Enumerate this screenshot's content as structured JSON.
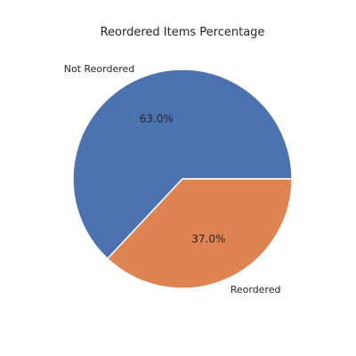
{
  "chart_data": {
    "type": "pie",
    "title": "Reordered Items Percentage",
    "categories": [
      "Not Reordered",
      "Reordered"
    ],
    "values": [
      63.0,
      37.0
    ],
    "percent_labels": [
      "63.0%",
      "37.0%"
    ],
    "colors": [
      "#4c72b0",
      "#dd8452"
    ],
    "start_angle_deg": 0,
    "direction": "counterclockwise",
    "legend": "none"
  }
}
